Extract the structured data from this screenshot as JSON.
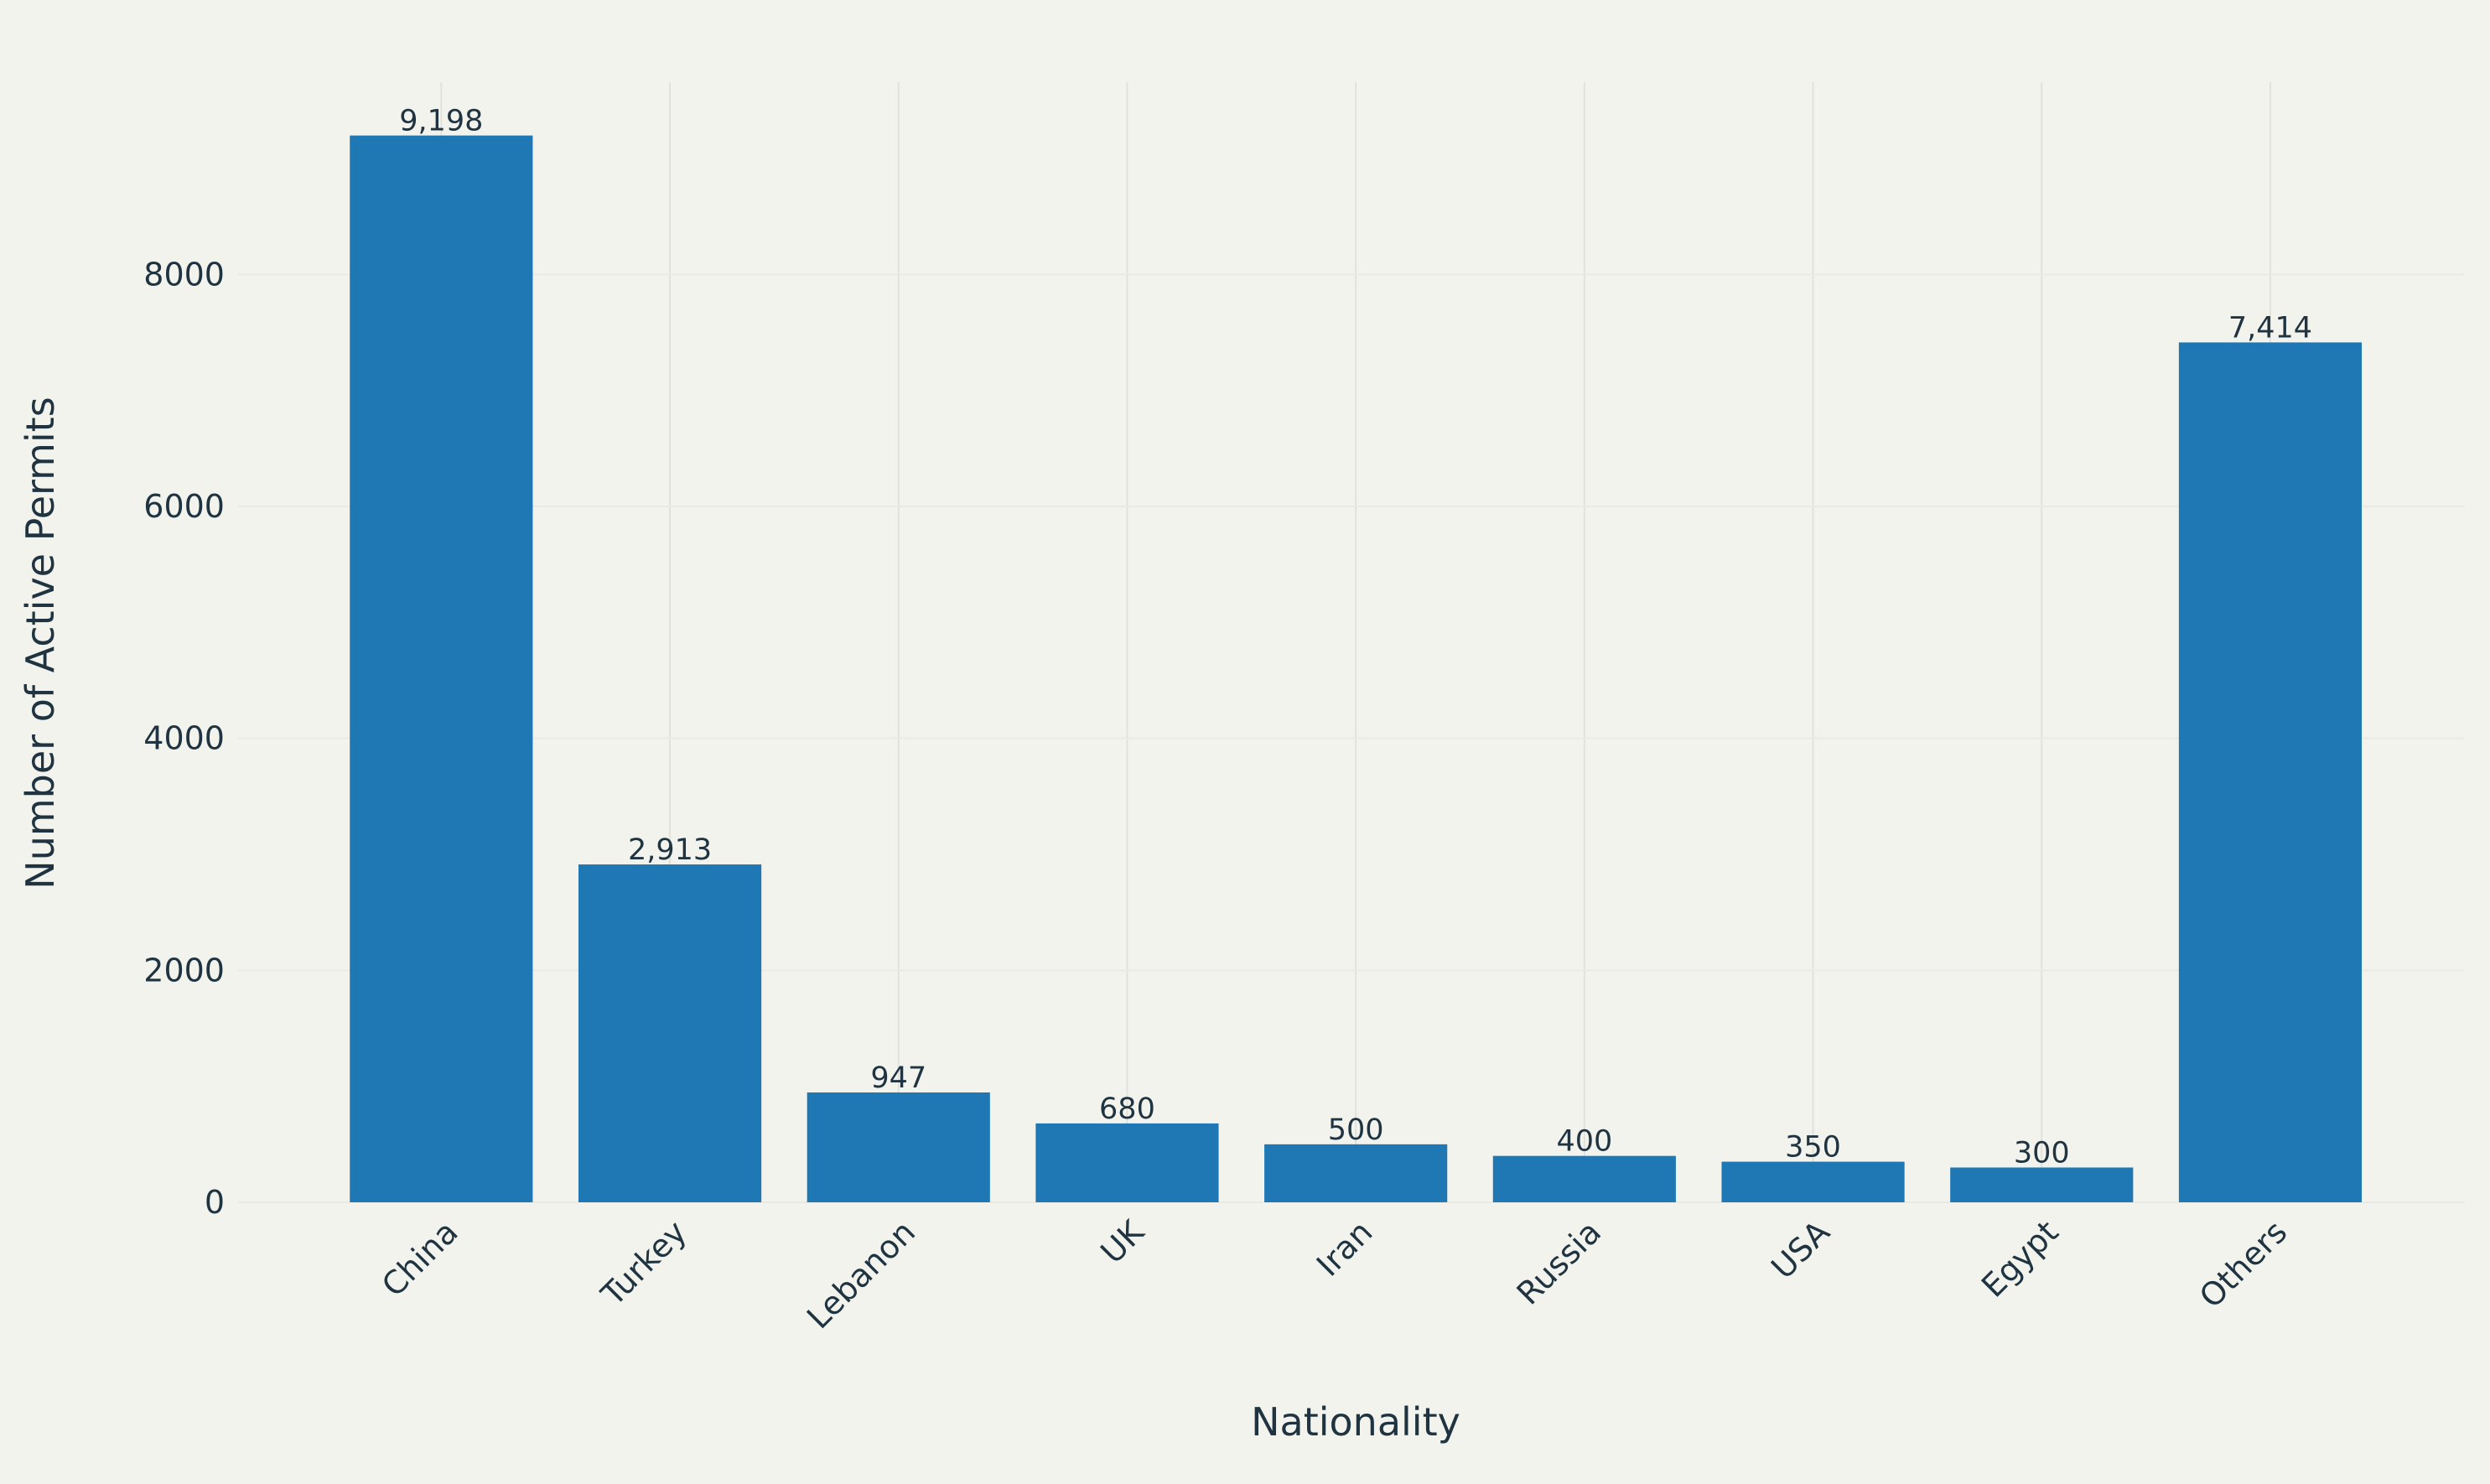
{
  "chart_data": {
    "type": "bar",
    "x_label": "Nationality",
    "y_label": "Number of Active Permits",
    "categories": [
      "China",
      "Turkey",
      "Lebanon",
      "UK",
      "Iran",
      "Russia",
      "USA",
      "Egypt",
      "Others"
    ],
    "values": [
      9198,
      2913,
      947,
      680,
      500,
      400,
      350,
      300,
      7414
    ],
    "value_labels": [
      "9,198",
      "2,913",
      "947",
      "680",
      "500",
      "400",
      "350",
      "300",
      "7,414"
    ],
    "color": "#1f77b4",
    "ylim": [
      0,
      9658
    ],
    "yticks": [
      0,
      2000,
      4000,
      6000,
      8000
    ],
    "grid": true
  }
}
